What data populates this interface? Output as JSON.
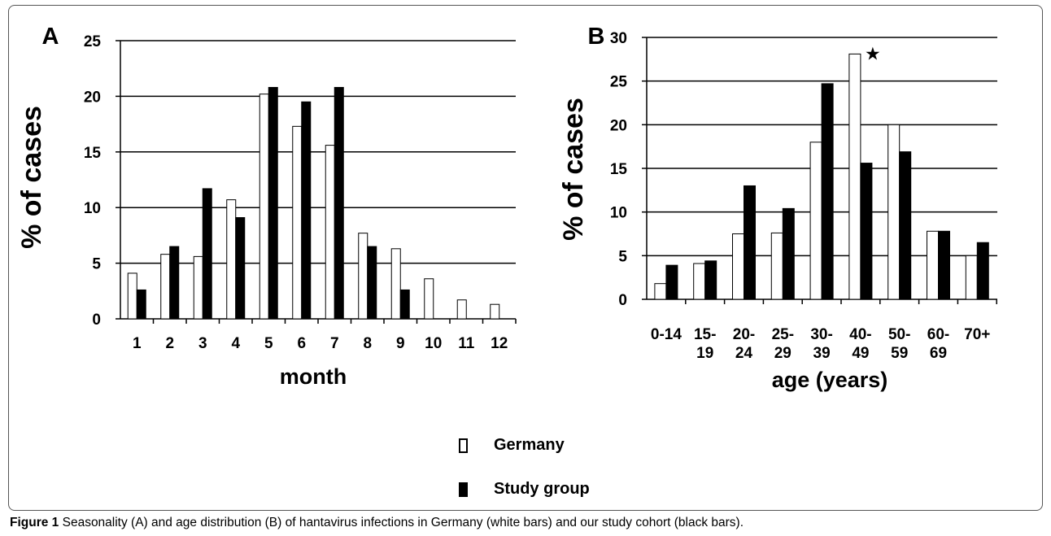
{
  "chart_data": [
    {
      "type": "bar",
      "panel_label": "A",
      "xlabel": "month",
      "ylabel": "% of cases",
      "ylim": [
        0,
        25
      ],
      "yticks": [
        0,
        5,
        10,
        15,
        20,
        25
      ],
      "grid": true,
      "categories": [
        "1",
        "2",
        "3",
        "4",
        "5",
        "6",
        "7",
        "8",
        "9",
        "10",
        "11",
        "12"
      ],
      "series": [
        {
          "name": "Germany",
          "values": [
            4.1,
            5.8,
            5.6,
            10.7,
            20.2,
            17.3,
            15.6,
            7.7,
            6.3,
            3.6,
            1.7,
            1.3
          ]
        },
        {
          "name": "Study group",
          "values": [
            2.6,
            6.5,
            11.7,
            9.1,
            20.8,
            19.5,
            20.8,
            6.5,
            2.6,
            null,
            null,
            null
          ]
        }
      ]
    },
    {
      "type": "bar",
      "panel_label": "B",
      "xlabel": "age (years)",
      "ylabel": "% of cases",
      "ylim": [
        0,
        30
      ],
      "yticks": [
        0,
        5,
        10,
        15,
        20,
        25,
        30
      ],
      "grid": true,
      "categories": [
        [
          "0-14"
        ],
        [
          "15-",
          "19"
        ],
        [
          "20-",
          "24"
        ],
        [
          "25-",
          "29"
        ],
        [
          "30-",
          "39"
        ],
        [
          "40-",
          "49"
        ],
        [
          "50-",
          "59"
        ],
        [
          "60-",
          "69"
        ],
        [
          "70+"
        ]
      ],
      "series": [
        {
          "name": "Germany",
          "values": [
            1.8,
            4.1,
            7.5,
            7.6,
            18.0,
            28.1,
            20.0,
            7.8,
            5.0
          ]
        },
        {
          "name": "Study group",
          "values": [
            3.9,
            4.4,
            13.0,
            10.4,
            24.7,
            15.6,
            16.9,
            7.8,
            6.5
          ]
        }
      ],
      "annotation": {
        "category_index": 5,
        "symbol": "★"
      }
    }
  ],
  "legend": [
    {
      "label": "Germany",
      "color": "#ffffff"
    },
    {
      "label": "Study group",
      "color": "#000000"
    }
  ],
  "caption": {
    "label": "Figure 1",
    "text": "Seasonality (A) and age distribution (B) of hantavirus infections in Germany (white bars) and our study cohort (black bars)."
  }
}
